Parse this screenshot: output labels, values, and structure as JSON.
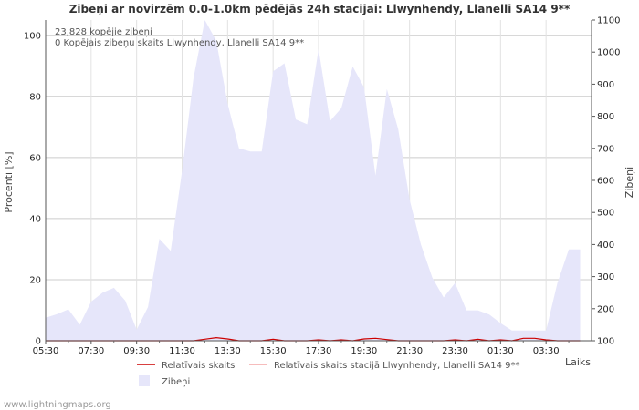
{
  "chart_data": {
    "type": "area",
    "title": "Zibeņi ar novirzēm 0.0-1.0km pēdējās 24h stacijai: Llwynhendy, Llanelli SA14 9**",
    "xlabel": "Laiks",
    "ylabel_left": "Procenti   [%]",
    "ylabel_right": "Zibeņi",
    "info_lines": [
      "23,828 kopējie zibeņi",
      "0 Kopējais zibeņu skaits Llwynhendy, Llanelli SA14 9**"
    ],
    "x_ticks": [
      "05:30",
      "07:30",
      "09:30",
      "11:30",
      "13:30",
      "15:30",
      "17:30",
      "19:30",
      "21:30",
      "23:30",
      "01:30",
      "03:30"
    ],
    "ylim_left": [
      0,
      105
    ],
    "y_ticks_left": [
      "0",
      "20",
      "40",
      "60",
      "80",
      "100"
    ],
    "ylim_right": [
      100,
      1100
    ],
    "y_ticks_right": [
      "100",
      "200",
      "300",
      "400",
      "500",
      "600",
      "700",
      "800",
      "900",
      "1000",
      "1100"
    ],
    "x_hours_from_start": [
      0,
      0.5,
      1,
      1.5,
      2,
      2.5,
      3,
      3.5,
      4,
      4.5,
      5,
      5.5,
      6,
      6.5,
      7,
      7.5,
      8,
      8.5,
      9,
      9.5,
      10,
      10.5,
      11,
      11.5,
      12,
      12.5,
      13,
      13.5,
      14,
      14.5,
      15,
      15.5,
      16,
      16.5,
      17,
      17.5,
      18,
      18.5,
      19,
      19.5,
      20,
      20.5,
      21,
      21.5,
      22,
      22.5,
      23,
      23.5
    ],
    "series": [
      {
        "name": "Zibeņi",
        "color": "#e6e6fa",
        "axis": "right",
        "values": [
          172,
          183,
          198,
          150,
          222,
          250,
          265,
          225,
          135,
          205,
          418,
          380,
          630,
          920,
          1100,
          1035,
          840,
          700,
          690,
          690,
          940,
          965,
          790,
          775,
          1010,
          785,
          825,
          955,
          890,
          615,
          885,
          760,
          540,
          400,
          297,
          235,
          280,
          195,
          195,
          182,
          155,
          132,
          132,
          132,
          132,
          280,
          385,
          385
        ]
      },
      {
        "name": "Relatīvais skaits",
        "color": "#cc0000",
        "axis": "left",
        "values": [
          0,
          0,
          0,
          0,
          0,
          0,
          0,
          0,
          0,
          0,
          0,
          0,
          0,
          0,
          0.5,
          1,
          0.6,
          0,
          0,
          0,
          0.5,
          0,
          0,
          0,
          0.3,
          0,
          0.3,
          0,
          0.6,
          0.8,
          0.4,
          0,
          0,
          0,
          0,
          0,
          0.3,
          0,
          0.5,
          0,
          0.3,
          0,
          0.8,
          0.8,
          0.3,
          0,
          0,
          0
        ]
      },
      {
        "name": "Relatīvais skaits stacijā Llwynhendy, Llanelli SA14 9**",
        "color": "#f4a6a6",
        "axis": "left",
        "values": []
      }
    ],
    "legend": [
      {
        "label": "Relatīvais skaits",
        "color": "#cc0000",
        "kind": "line"
      },
      {
        "label": "Relatīvais skaits stacijā Llwynhendy, Llanelli SA14 9**",
        "color": "#f4a6a6",
        "kind": "line"
      },
      {
        "label": "Zibeņi",
        "color": "#e6e6fa",
        "kind": "box"
      }
    ]
  },
  "credit": "www.lightningmaps.org"
}
